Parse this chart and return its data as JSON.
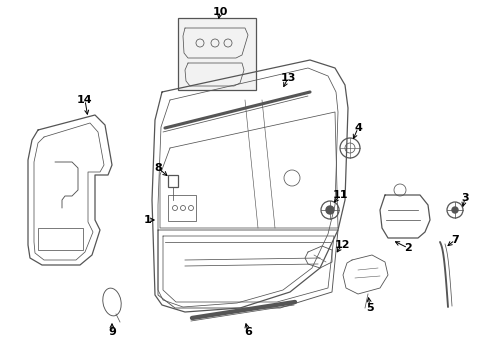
{
  "bg_color": "#ffffff",
  "line_color": "#555555",
  "label_color": "#000000",
  "fig_width": 4.89,
  "fig_height": 3.6,
  "dpi": 100,
  "lw_main": 0.9,
  "lw_thin": 0.55,
  "font_size": 8.0
}
